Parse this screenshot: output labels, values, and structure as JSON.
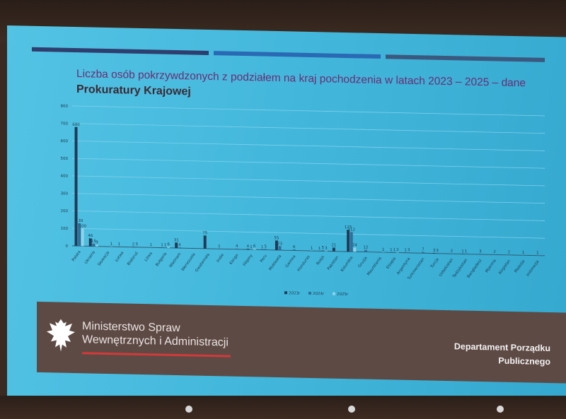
{
  "slide": {
    "title_line1": "Liczba osób pokrzywdzonych z podziałem na kraj pochodzenia w latach 2023 – 2025 – dane",
    "title_line2": "Prokuratury Krajowej",
    "ministry_line1": "Ministerstwo Spraw",
    "ministry_line2": "Wewnętrznych i Administracji",
    "department_line1": "Departament Porządku",
    "department_line2": "Publicznego"
  },
  "colors": {
    "screen": "#44b8dc",
    "title": "#6b2d74",
    "series_2023": "#1f3b57",
    "series_2024": "#2f6f9a",
    "series_2025": "#8fd3ea",
    "footer": "#5e4a44",
    "accent_red": "#d23a3a"
  },
  "chart_data": {
    "type": "bar",
    "title": "Liczba osób pokrzywdzonych z podziałem na kraj pochodzenia w latach 2023 – 2025 – dane Prokuratury Krajowej",
    "ylim": [
      0,
      800
    ],
    "yticks": [
      0,
      100,
      200,
      300,
      400,
      500,
      600,
      700,
      800
    ],
    "grid": true,
    "legend_position": "bottom",
    "categories": [
      "Polska",
      "Ukraina",
      "Słowacja",
      "Łotwa",
      "Białoruś",
      "Litwa",
      "Bułgaria",
      "Wietnam",
      "Wenezuela",
      "Gwatemala",
      "Indie",
      "Kongo",
      "Filipiny",
      "Peru",
      "Mołdawia",
      "Gwinea",
      "Honduras",
      "Rosja",
      "Pakistan",
      "Kolumbia",
      "Gruzja",
      "Mauretania",
      "Etiopia",
      "Argentyna",
      "Turkmenistan",
      "Turcja",
      "Uzbekistan",
      "Tadżykistan",
      "Bangladesz",
      "Mjanma",
      "Kirgistan",
      "Malezja",
      "Indonezja"
    ],
    "series": [
      {
        "name": "2023r",
        "values": [
          680,
          46,
          0,
          1,
          2,
          0,
          1,
          31,
          0,
          75,
          1,
          0,
          4,
          1,
          55,
          0,
          0,
          1,
          21,
          125,
          0,
          0,
          1,
          1,
          0,
          3,
          0,
          1,
          0,
          0,
          0,
          0,
          0
        ]
      },
      {
        "name": "2024r",
        "values": [
          130,
          15,
          0,
          0,
          3,
          1,
          1,
          4,
          0,
          0,
          0,
          4,
          1,
          5,
          23,
          6,
          0,
          5,
          0,
          112,
          12,
          0,
          1,
          3,
          7,
          3,
          2,
          1,
          3,
          2,
          2,
          1,
          1
        ]
      },
      {
        "name": "2025r",
        "values": [
          100,
          9,
          1,
          0,
          0,
          0,
          6,
          0,
          0,
          0,
          0,
          0,
          6,
          0,
          0,
          0,
          1,
          3,
          0,
          24,
          0,
          1,
          2,
          0,
          0,
          0,
          0,
          0,
          0,
          0,
          0,
          0,
          0
        ]
      }
    ]
  }
}
